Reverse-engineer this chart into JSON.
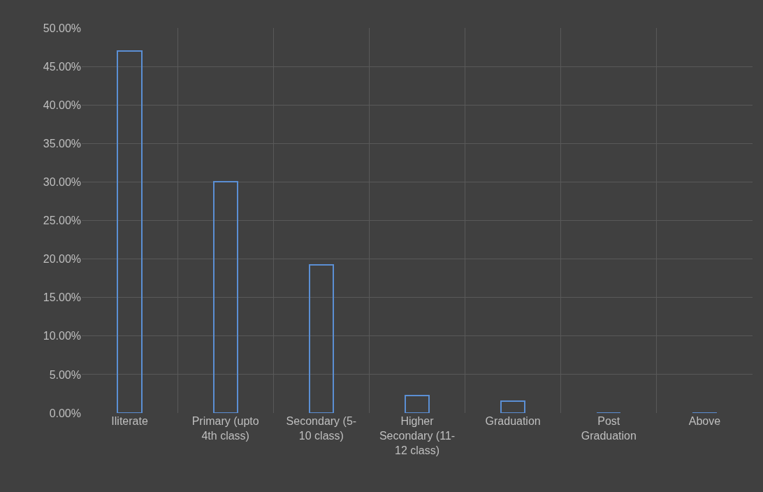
{
  "chart_data": {
    "type": "bar",
    "categories": [
      "Iliterate",
      "Primary (upto 4th class)",
      "Secondary (5-10 class)",
      "Higher Secondary (11-12 class)",
      "Graduation",
      "Post Graduation",
      "Above"
    ],
    "values": [
      47.0,
      30.0,
      19.2,
      2.3,
      1.5,
      0,
      0
    ],
    "color": "#5b8fd4",
    "ylim": [
      0,
      50
    ],
    "yticks": [
      {
        "value": 0,
        "label": "0.00%"
      },
      {
        "value": 5,
        "label": "5.00%"
      },
      {
        "value": 10,
        "label": "10.00%"
      },
      {
        "value": 15,
        "label": "15.00%"
      },
      {
        "value": 20,
        "label": "20.00%"
      },
      {
        "value": 25,
        "label": "25.00%"
      },
      {
        "value": 30,
        "label": "30.00%"
      },
      {
        "value": 35,
        "label": "35.00%"
      },
      {
        "value": 40,
        "label": "40.00%"
      },
      {
        "value": 45,
        "label": "45.00%"
      },
      {
        "value": 50,
        "label": "50.00%"
      }
    ],
    "grid": true
  }
}
